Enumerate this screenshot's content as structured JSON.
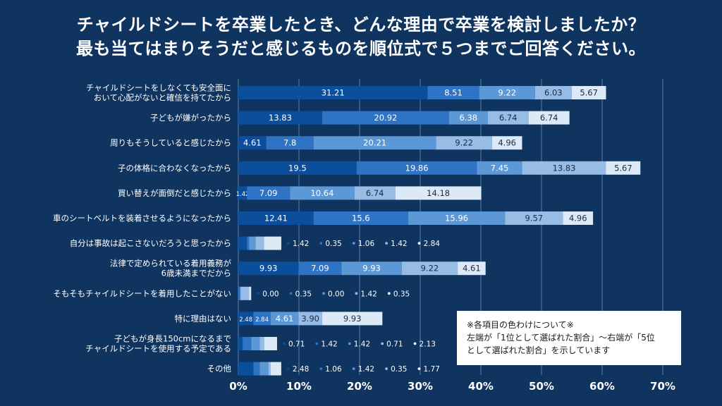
{
  "title": {
    "line1": "チャイルドシートを卒業したとき、どんな理由で卒業を検討しましたか？",
    "line2": "最も当てはまりそうだと感じるものを順位式で５つまでご回答ください。"
  },
  "note": {
    "line1": "※各項目の色わけについて※",
    "line2": "左端が「1位として選ばれた割合」〜右端が「5位",
    "line3": "として選ばれた割合」を示しています"
  },
  "colors": [
    "#0b4f9c",
    "#2f74c4",
    "#5c97d6",
    "#97bde6",
    "#dce9f7"
  ],
  "chart_data": {
    "type": "bar",
    "orientation": "horizontal",
    "stacked": true,
    "x_ticks": [
      "0%",
      "10%",
      "20%",
      "30%",
      "40%",
      "50%",
      "60%",
      "70%"
    ],
    "xlim": [
      0,
      70
    ],
    "grid": true,
    "categories": [
      [
        "チャイルドシートをしなくても安全面に",
        "おいて心配がないと確信を持てたから"
      ],
      [
        "子どもが嫌がったから"
      ],
      [
        "周りもそうしていると感じたから"
      ],
      [
        "子の体格に合わなくなったから"
      ],
      [
        "買い替えが面倒だと感じたから"
      ],
      [
        "車のシートベルトを装着させるようになったから"
      ],
      [
        "自分は事故は起こさないだろうと思ったから"
      ],
      [
        "法律で定められている着用義務が",
        "6歳未満までだから"
      ],
      [
        "そもそもチャイルドシートを着用したことがない"
      ],
      [
        "特に理由はない"
      ],
      [
        "子どもが身長150cmになるまで",
        "チャイルドシートを使用する予定である"
      ],
      [
        "その他"
      ]
    ],
    "values": [
      [
        31.21,
        8.51,
        9.22,
        6.03,
        5.67
      ],
      [
        13.83,
        20.92,
        6.38,
        6.74,
        6.74
      ],
      [
        4.61,
        7.8,
        20.21,
        9.22,
        4.96
      ],
      [
        19.5,
        19.86,
        7.45,
        13.83,
        5.67
      ],
      [
        1.42,
        7.09,
        10.64,
        6.74,
        14.18
      ],
      [
        12.41,
        15.6,
        15.96,
        9.57,
        4.96
      ],
      [
        1.42,
        0.35,
        1.06,
        1.42,
        2.84
      ],
      [
        9.93,
        7.09,
        9.93,
        9.22,
        4.61
      ],
      [
        0.0,
        0.35,
        0.0,
        1.42,
        0.35
      ],
      [
        2.48,
        2.84,
        4.61,
        3.9,
        9.93
      ],
      [
        0.71,
        1.42,
        1.42,
        0.71,
        2.13
      ],
      [
        2.48,
        1.06,
        1.42,
        0.35,
        1.77
      ]
    ],
    "value_labels": [
      [
        "31.21",
        "8.51",
        "9.22",
        "6.03",
        "5.67"
      ],
      [
        "13.83",
        "20.92",
        "6.38",
        "6.74",
        "6.74"
      ],
      [
        "4.61",
        "7.8",
        "20.21",
        "9.22",
        "4.96"
      ],
      [
        "19.5",
        "19.86",
        "7.45",
        "13.83",
        "5.67"
      ],
      [
        "1.42",
        "7.09",
        "10.64",
        "6.74",
        "14.18"
      ],
      [
        "12.41",
        "15.6",
        "15.96",
        "9.57",
        "4.96"
      ],
      [
        "1.42",
        "0.35",
        "1.06",
        "1.42",
        "2.84"
      ],
      [
        "9.93",
        "7.09",
        "9.93",
        "9.22",
        "4.61"
      ],
      [
        "0.00",
        "0.35",
        "0.00",
        "1.42",
        "0.35"
      ],
      [
        "2.48",
        "2.84",
        "4.61",
        "3.90",
        "9.93"
      ],
      [
        "0.71",
        "1.42",
        "1.42",
        "0.71",
        "2.13"
      ],
      [
        "2.48",
        "1.06",
        "1.42",
        "0.35",
        "1.77"
      ]
    ]
  }
}
